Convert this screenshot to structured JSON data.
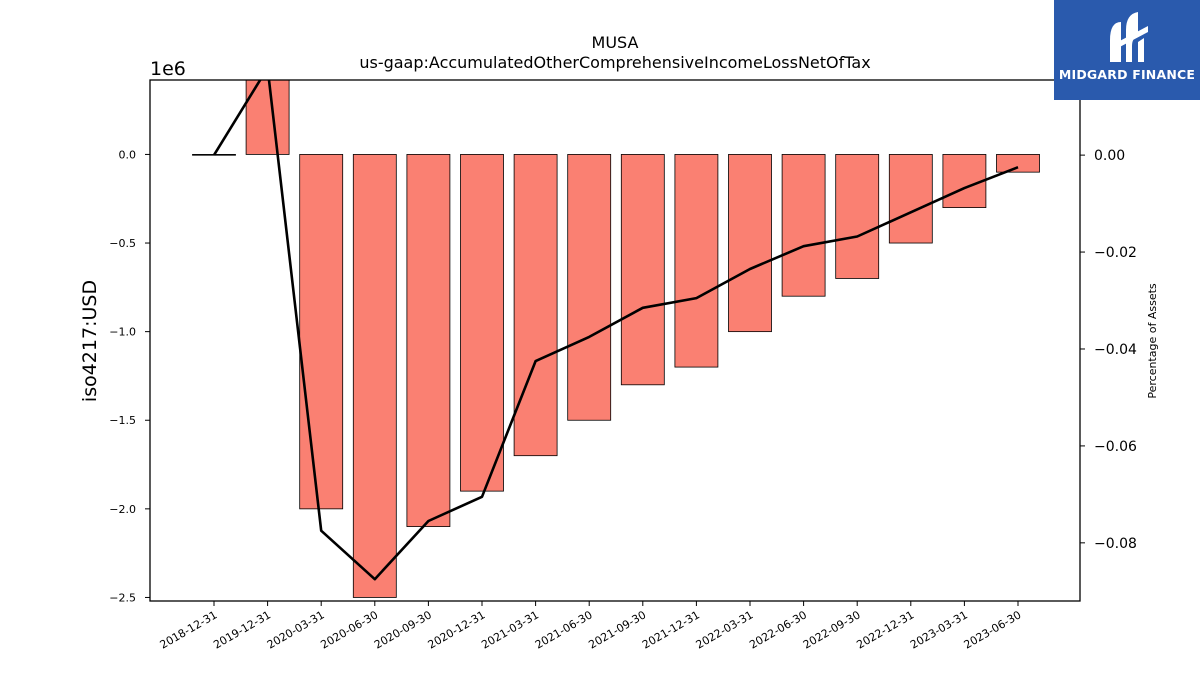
{
  "chart_data": {
    "type": "bar",
    "title": "MUSA",
    "subtitle": "us-gaap:AccumulatedOtherComprehensiveIncomeLossNetOfTax",
    "ylabel": "iso4217:USD",
    "y_offset_label": "1e6",
    "y2label": "Percentage of Assets",
    "categories": [
      "2018-12-31",
      "2019-12-31",
      "2020-03-31",
      "2020-06-30",
      "2020-09-30",
      "2020-12-31",
      "2021-03-31",
      "2021-06-30",
      "2021-09-30",
      "2021-12-31",
      "2022-03-31",
      "2022-06-30",
      "2022-09-30",
      "2022-12-31",
      "2023-03-31",
      "2023-06-30"
    ],
    "series": [
      {
        "axis": "left",
        "type": "bar",
        "color": "#fa8072",
        "values": [
          0,
          420000,
          -2000000,
          -2500000,
          -2100000,
          -1900000,
          -1700000,
          -1500000,
          -1300000,
          -1200000,
          -1000000,
          -800000,
          -700000,
          -500000,
          -300000,
          -100000
        ]
      },
      {
        "axis": "right",
        "type": "line",
        "color": "#000000",
        "values": [
          0.0,
          0.018,
          -0.0775,
          -0.0875,
          -0.0755,
          -0.0705,
          -0.0425,
          -0.0375,
          -0.0315,
          -0.0295,
          -0.0235,
          -0.0188,
          -0.0168,
          -0.0118,
          -0.0068,
          -0.0025
        ]
      }
    ],
    "ylim": [
      -2520000,
      420000
    ],
    "y2lim": [
      -0.092,
      0.0155
    ],
    "yticks": [
      {
        "value": 0,
        "label": "0.0"
      },
      {
        "value": -500000,
        "label": "−0.5"
      },
      {
        "value": -1000000,
        "label": "−1.0"
      },
      {
        "value": -1500000,
        "label": "−1.5"
      },
      {
        "value": -2000000,
        "label": "−2.0"
      },
      {
        "value": -2500000,
        "label": "−2.5"
      }
    ],
    "y2ticks": [
      {
        "value": 0,
        "label": "0.00"
      },
      {
        "value": -0.02,
        "label": "−0.02"
      },
      {
        "value": -0.04,
        "label": "−0.04"
      },
      {
        "value": -0.06,
        "label": "−0.06"
      },
      {
        "value": -0.08,
        "label": "−0.08"
      }
    ],
    "grid": false
  },
  "logo": {
    "name": "MIDGARD FINANCE",
    "bg_color": "#2a5aad"
  }
}
